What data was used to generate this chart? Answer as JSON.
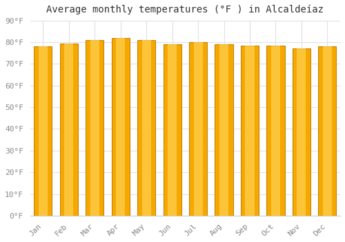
{
  "title": "Average monthly temperatures (°F ) in Alcaldeíaz",
  "months": [
    "Jan",
    "Feb",
    "Mar",
    "Apr",
    "May",
    "Jun",
    "Jul",
    "Aug",
    "Sep",
    "Oct",
    "Nov",
    "Dec"
  ],
  "values": [
    78,
    79.5,
    81,
    82,
    81,
    79,
    80,
    79,
    78.5,
    78.5,
    77,
    78
  ],
  "bar_color_center": "#FFD050",
  "bar_color_edge": "#F5A800",
  "bar_border_color": "#C8820A",
  "background_color": "#FFFFFF",
  "plot_bg_color": "#FFFFFF",
  "grid_color": "#E0E0E8",
  "ylim": [
    0,
    90
  ],
  "yticks": [
    0,
    10,
    20,
    30,
    40,
    50,
    60,
    70,
    80,
    90
  ],
  "ytick_labels": [
    "0°F",
    "10°F",
    "20°F",
    "30°F",
    "40°F",
    "50°F",
    "60°F",
    "70°F",
    "80°F",
    "90°F"
  ],
  "title_fontsize": 10,
  "tick_fontsize": 8,
  "bar_width": 0.7
}
